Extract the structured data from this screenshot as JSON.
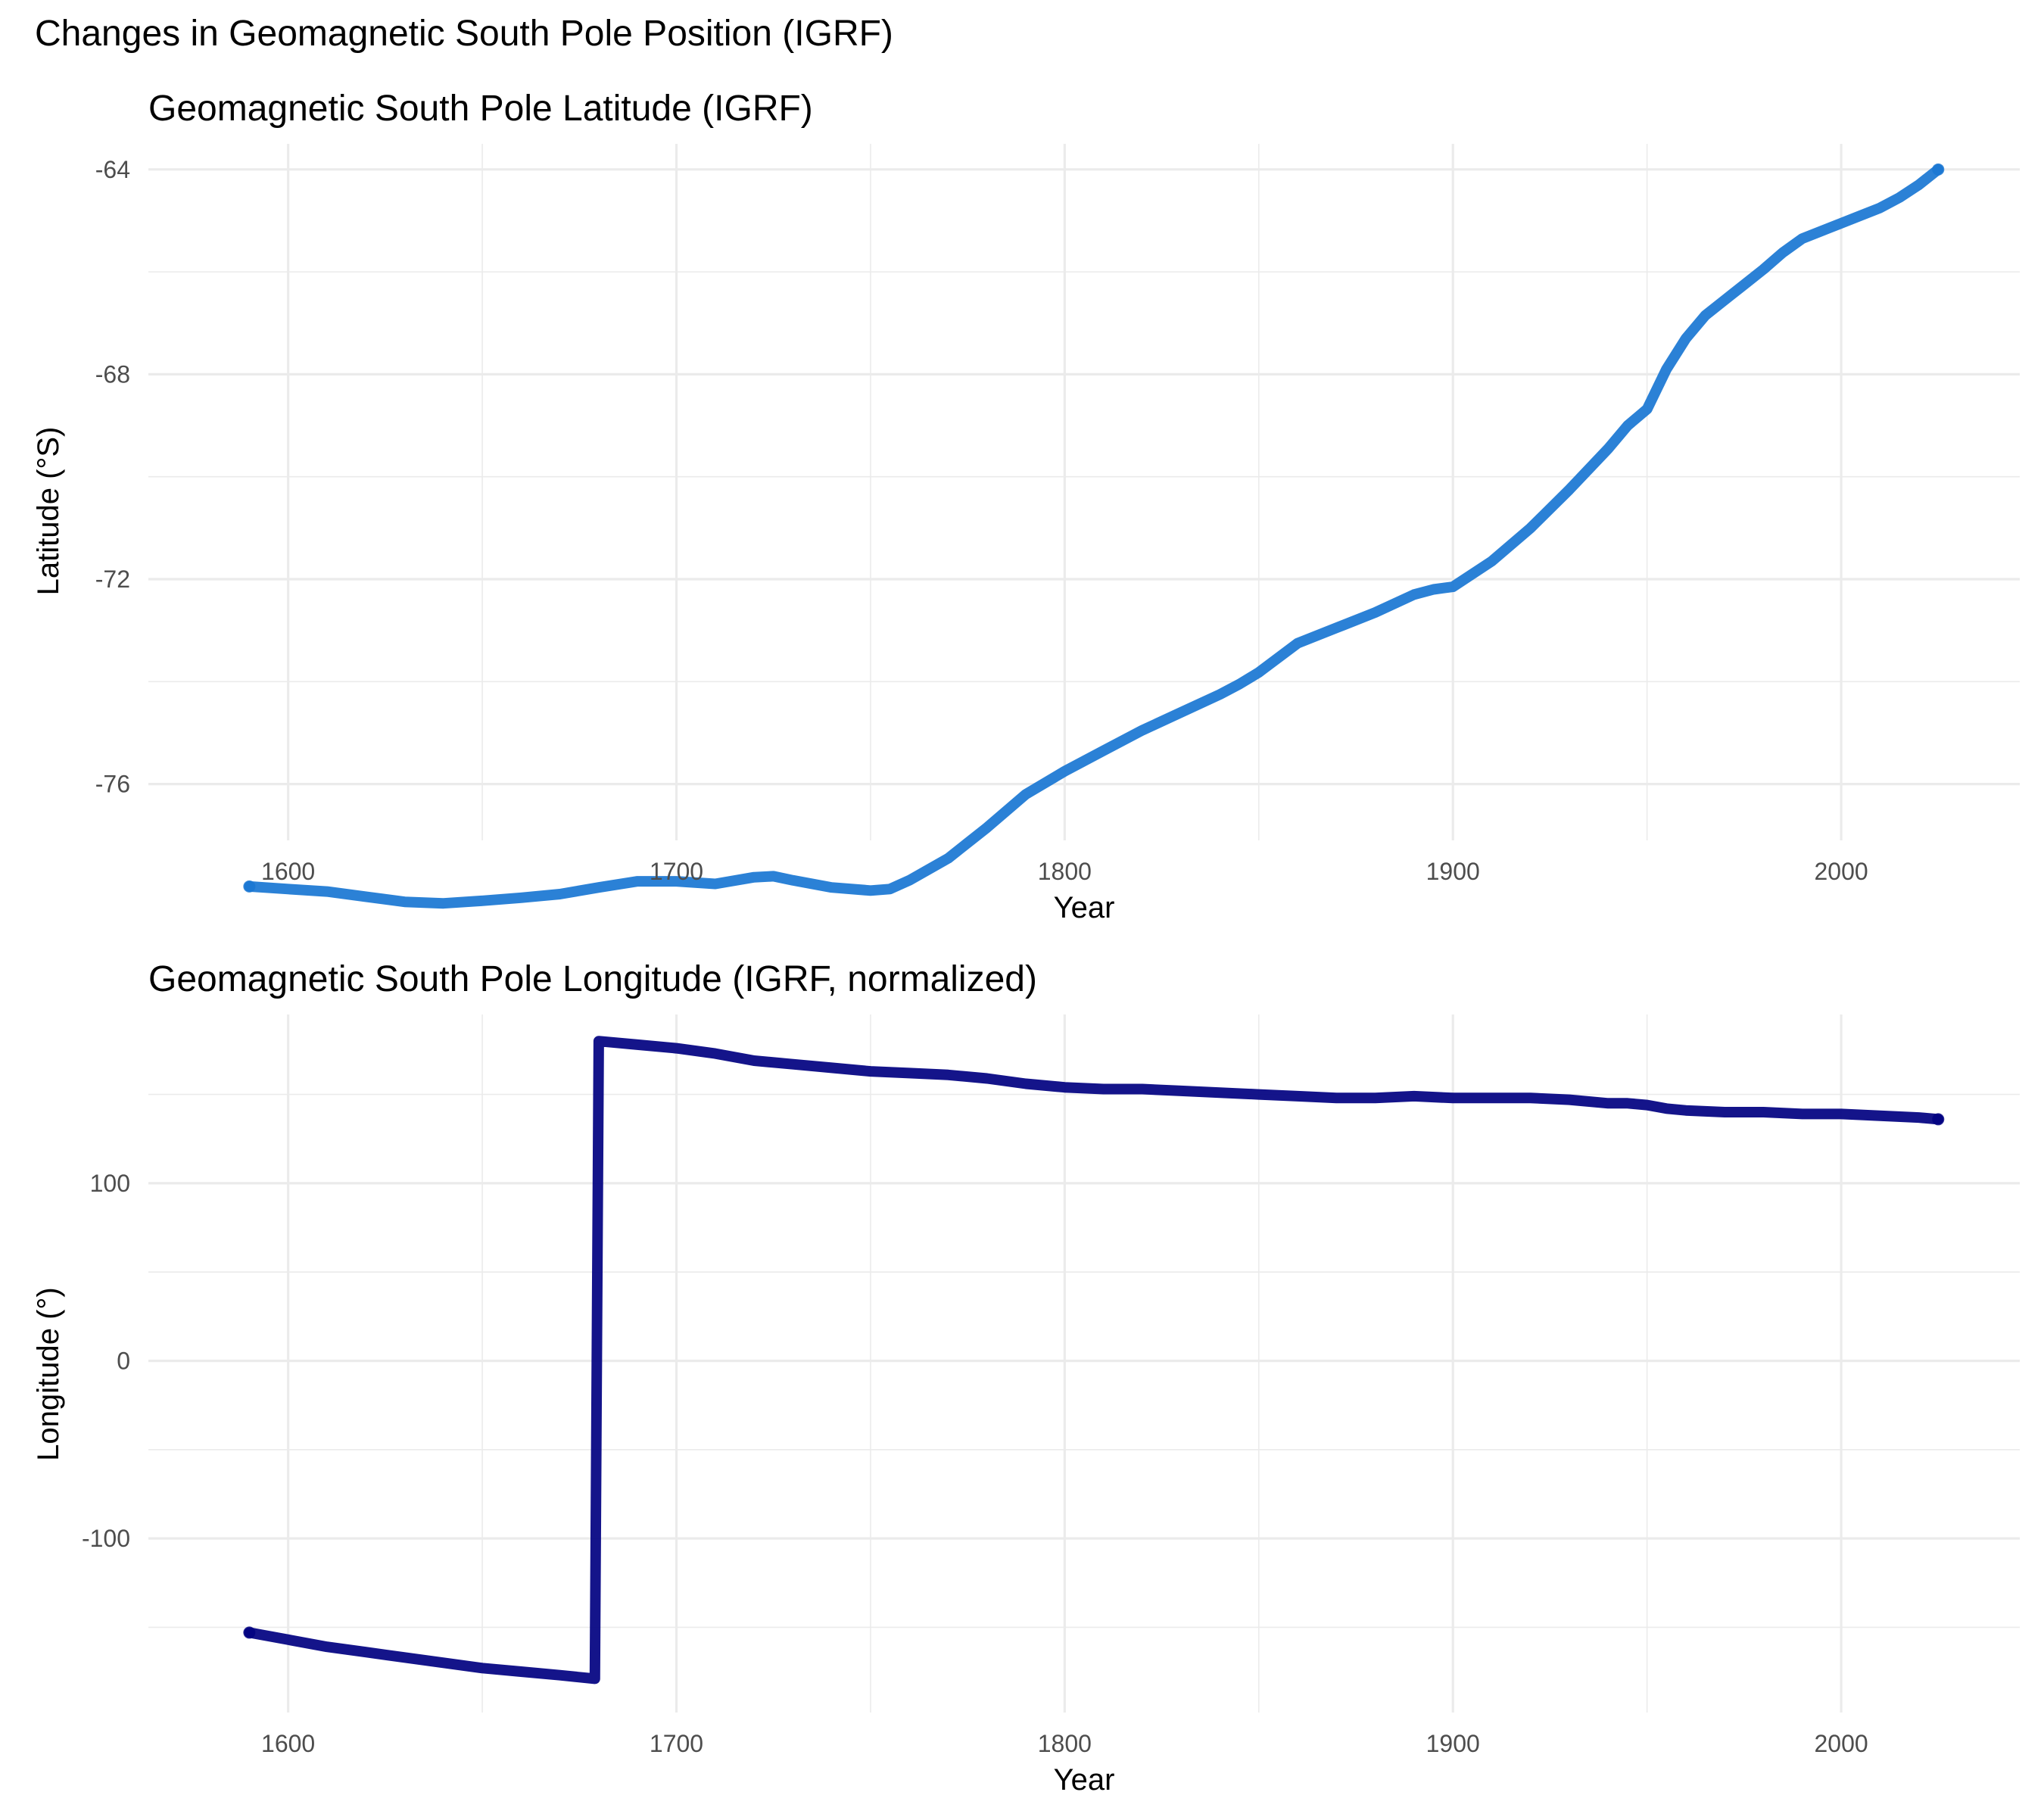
{
  "figure_title": "Changes in Geomagnetic South Pole Position (IGRF)",
  "chart_data": [
    {
      "type": "line",
      "title": "Geomagnetic South Pole Latitude (IGRF)",
      "xlabel": "Year",
      "ylabel": "Latitude (°S)",
      "xlim": [
        1564,
        2046
      ],
      "ylim": [
        -77.1,
        -63.5
      ],
      "xticks": [
        1600,
        1700,
        1800,
        1900,
        2000
      ],
      "yticks": [
        -64,
        -68,
        -72,
        -76
      ],
      "grid": true,
      "color": "#1976d2",
      "series": [
        {
          "x": [
            1590,
            1600,
            1610,
            1620,
            1630,
            1640,
            1650,
            1660,
            1670,
            1680,
            1690,
            1700,
            1710,
            1720,
            1725,
            1730,
            1740,
            1750,
            1755,
            1760,
            1770,
            1780,
            1790,
            1800,
            1810,
            1820,
            1830,
            1840,
            1845,
            1850,
            1860,
            1870,
            1880,
            1890,
            1895,
            1900,
            1910,
            1920,
            1930,
            1940,
            1945,
            1950,
            1955,
            1960,
            1965,
            1970,
            1975,
            1980,
            1985,
            1990,
            1995,
            2000,
            2005,
            2010,
            2015,
            2020,
            2025
          ],
          "y": [
            -78.0,
            -78.05,
            -78.1,
            -78.2,
            -78.3,
            -78.33,
            -78.28,
            -78.22,
            -78.15,
            -78.02,
            -77.9,
            -77.9,
            -77.95,
            -77.82,
            -77.8,
            -77.88,
            -78.02,
            -78.08,
            -78.05,
            -77.88,
            -77.45,
            -76.85,
            -76.2,
            -75.75,
            -75.35,
            -74.95,
            -74.6,
            -74.25,
            -74.05,
            -73.82,
            -73.25,
            -72.95,
            -72.65,
            -72.3,
            -72.2,
            -72.15,
            -71.65,
            -71.0,
            -70.25,
            -69.45,
            -69.0,
            -68.68,
            -67.9,
            -67.3,
            -66.85,
            -66.55,
            -66.25,
            -65.95,
            -65.62,
            -65.35,
            -65.2,
            -65.05,
            -64.9,
            -64.75,
            -64.55,
            -64.3,
            -64.0
          ]
        }
      ]
    },
    {
      "type": "line",
      "title": "Geomagnetic South Pole Longitude (IGRF, normalized)",
      "xlabel": "Year",
      "ylabel": "Longitude (°)",
      "xlim": [
        1564,
        2046
      ],
      "ylim": [
        -198,
        195
      ],
      "xticks": [
        1600,
        1700,
        1800,
        1900,
        2000
      ],
      "yticks": [
        100,
        0,
        -100
      ],
      "grid": true,
      "color": "#000080",
      "series": [
        {
          "x": [
            1590,
            1600,
            1610,
            1620,
            1630,
            1640,
            1650,
            1660,
            1670,
            1679,
            1680,
            1690,
            1700,
            1710,
            1720,
            1730,
            1740,
            1750,
            1760,
            1770,
            1780,
            1790,
            1800,
            1810,
            1820,
            1830,
            1840,
            1850,
            1860,
            1870,
            1880,
            1890,
            1900,
            1910,
            1920,
            1930,
            1940,
            1945,
            1950,
            1955,
            1960,
            1970,
            1980,
            1990,
            2000,
            2010,
            2020,
            2025
          ],
          "y": [
            -153,
            -157,
            -161,
            -164,
            -167,
            -170,
            -173,
            -175,
            -177,
            -179,
            180,
            178,
            176,
            173,
            169,
            167,
            165,
            163,
            162,
            161,
            159,
            156,
            154,
            153,
            153,
            152,
            151,
            150,
            149,
            148,
            148,
            149,
            148,
            148,
            148,
            147,
            145,
            145,
            144,
            142,
            141,
            140,
            140,
            139,
            139,
            138,
            137,
            136
          ]
        }
      ]
    }
  ]
}
